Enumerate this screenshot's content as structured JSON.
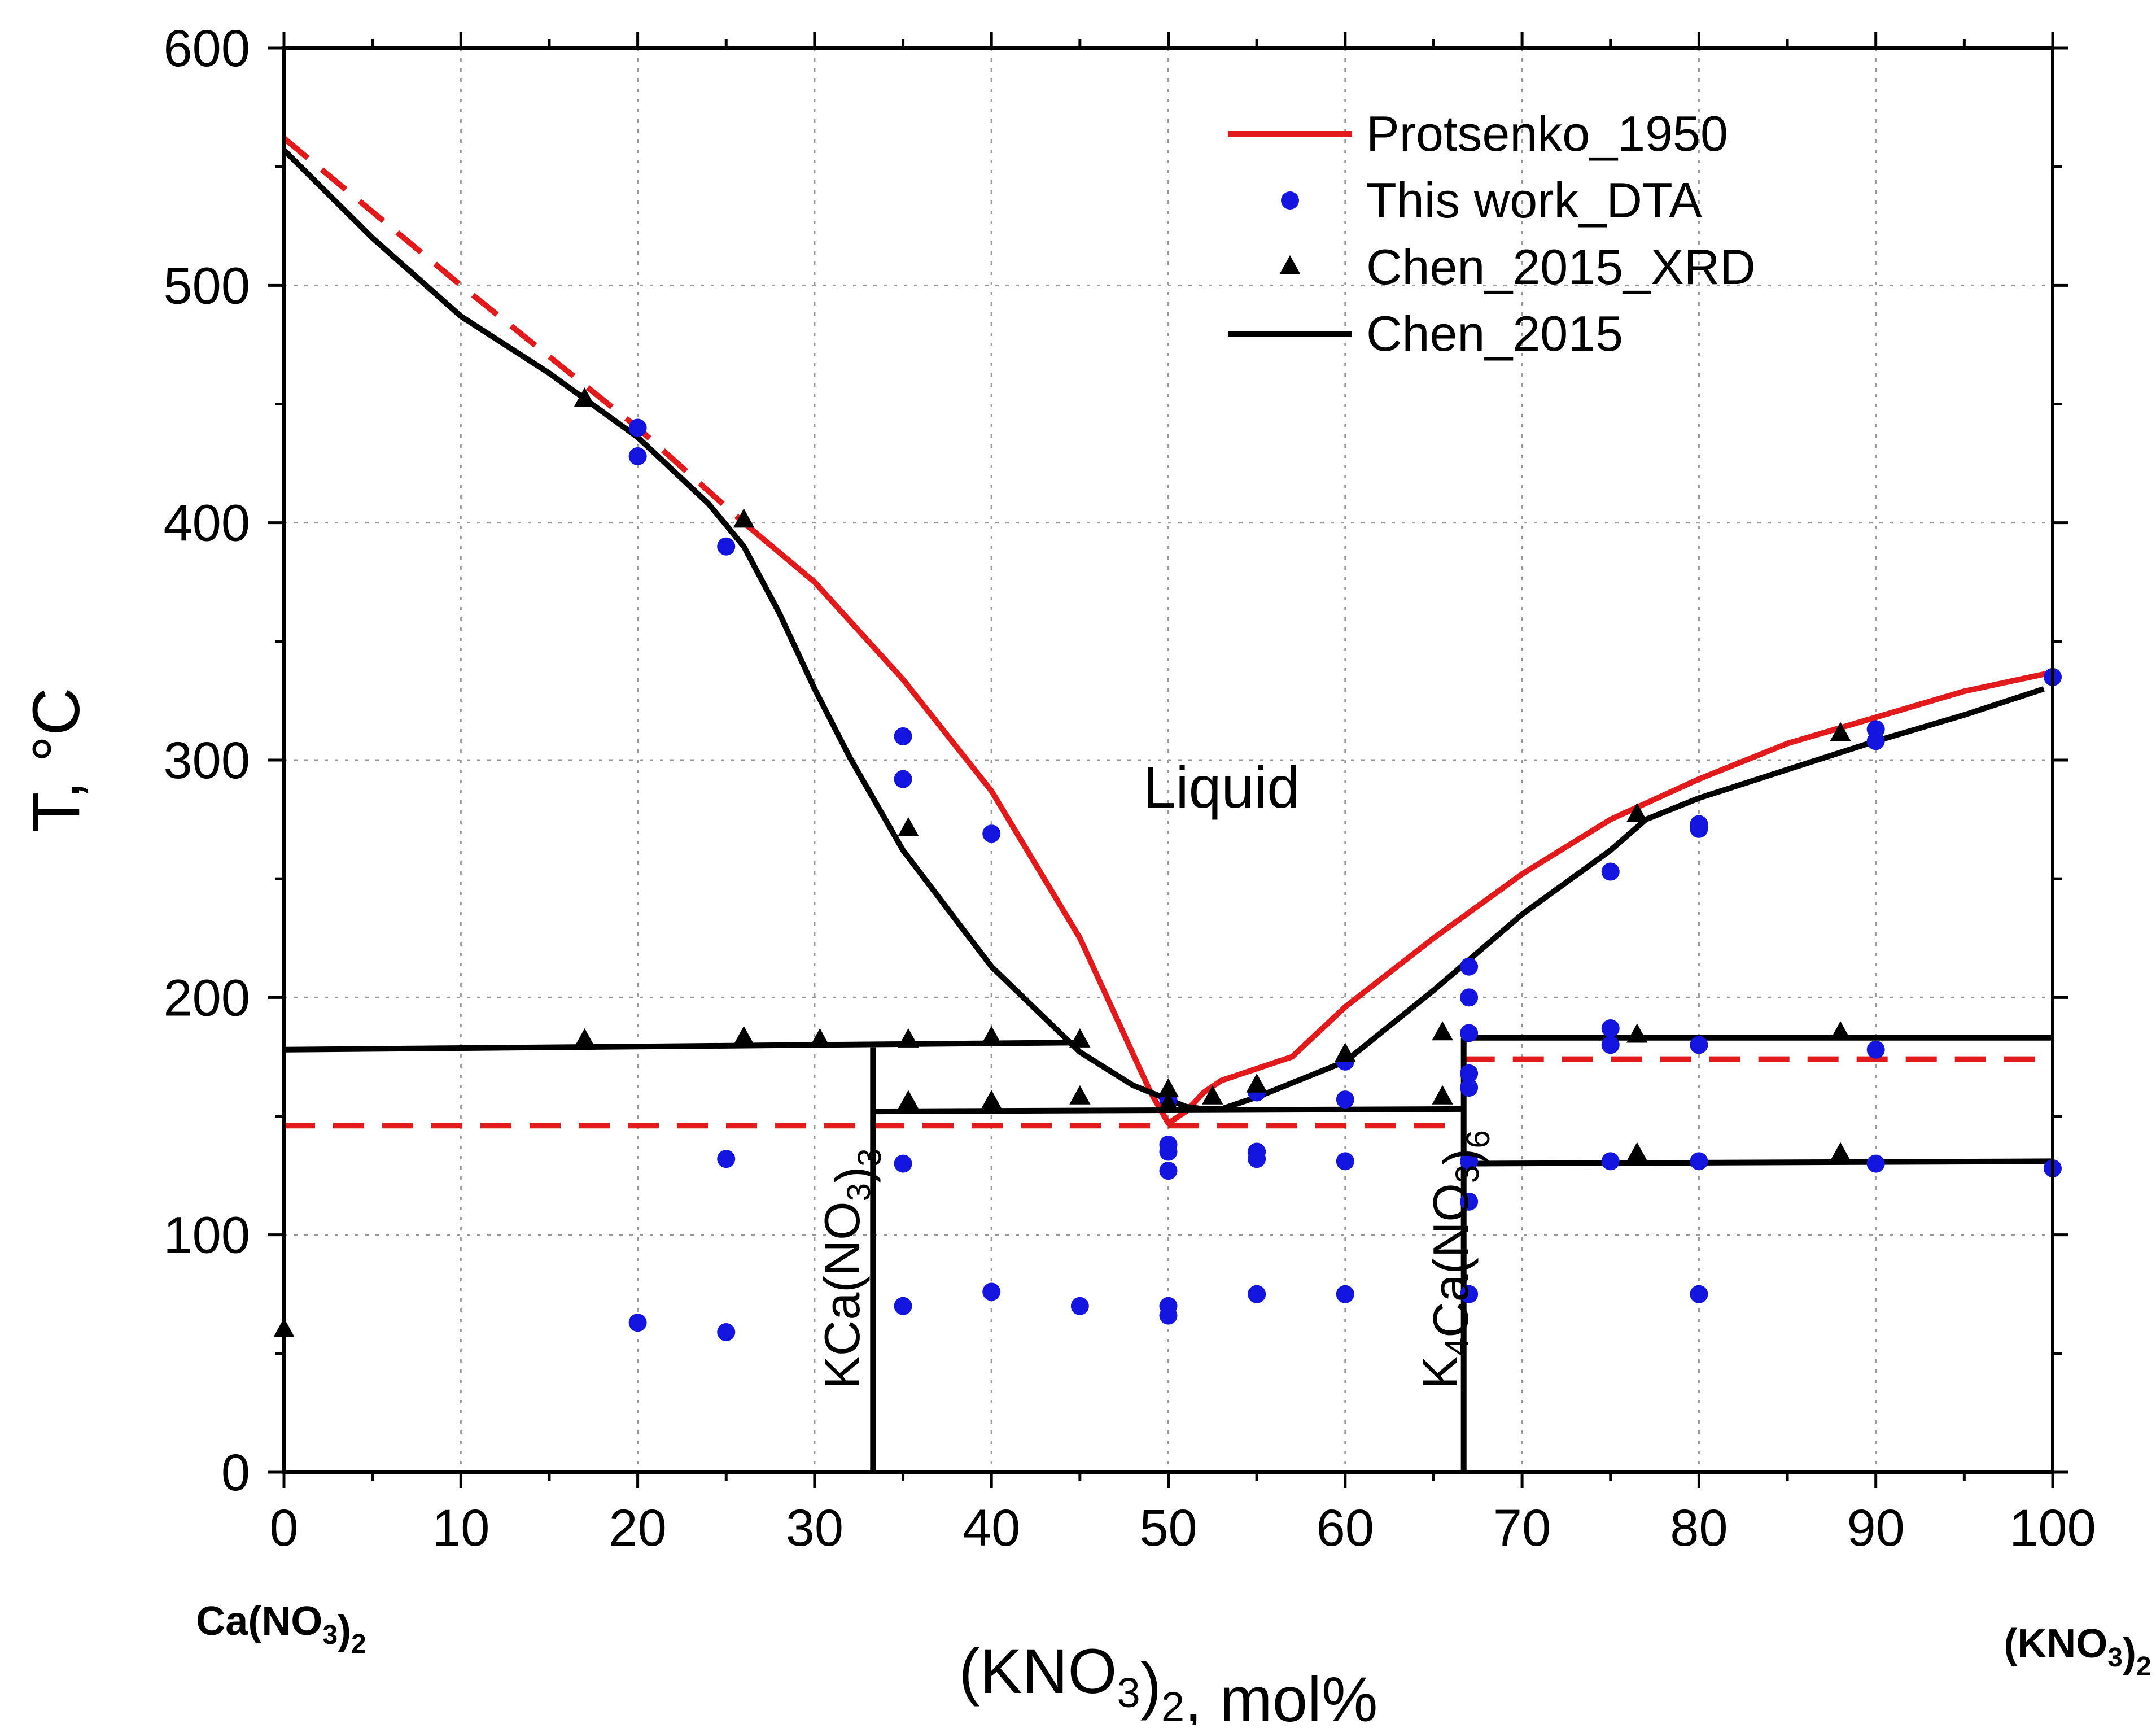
{
  "chart_data": {
    "type": "line",
    "title": "",
    "xlabel": "(KNO3)2, mol%",
    "ylabel": "T, °C",
    "xlim": [
      0,
      100
    ],
    "ylim": [
      0,
      600
    ],
    "xticks": [
      0,
      10,
      20,
      30,
      40,
      50,
      60,
      70,
      80,
      90,
      100
    ],
    "yticks": [
      0,
      100,
      200,
      300,
      400,
      500,
      600
    ],
    "grid": true,
    "legend_position": "top-right",
    "axis_end_labels": {
      "left": "Ca(NO3)2",
      "right": "(KNO3)2"
    },
    "region_labels": [
      {
        "text": "Liquid",
        "x": 53,
        "y": 280
      }
    ],
    "compound_labels": [
      {
        "text": "KCa(NO3)3",
        "x": 31.5,
        "y": 35
      },
      {
        "text": "K4Ca(NO3)6",
        "x": 65.3,
        "y": 35
      }
    ],
    "colors": {
      "protsenko": "#e31a1c",
      "this_work": "#1515e0",
      "chen": "#000000",
      "grid": "#999999"
    },
    "series": [
      {
        "name": "Protsenko_1950",
        "kind": "line",
        "color": "#e31a1c",
        "segments": [
          {
            "dash": true,
            "points": [
              [
                0,
                562
              ],
              [
                10,
                500
              ],
              [
                20,
                440
              ],
              [
                26,
                400
              ]
            ]
          },
          {
            "dash": false,
            "points": [
              [
                26,
                400
              ],
              [
                30,
                375
              ],
              [
                35,
                334
              ],
              [
                40,
                287
              ],
              [
                45,
                225
              ],
              [
                49,
                160
              ],
              [
                50,
                147
              ],
              [
                51,
                152
              ],
              [
                52,
                160
              ],
              [
                53,
                165
              ],
              [
                55,
                170
              ],
              [
                57,
                175
              ],
              [
                60,
                196
              ],
              [
                65,
                225
              ],
              [
                70,
                252
              ],
              [
                75,
                275
              ],
              [
                80,
                292
              ],
              [
                85,
                307
              ],
              [
                90,
                318
              ],
              [
                95,
                329
              ],
              [
                100,
                337
              ]
            ]
          },
          {
            "dash": true,
            "points": [
              [
                0,
                146
              ],
              [
                66.7,
                146
              ]
            ]
          },
          {
            "dash": true,
            "points": [
              [
                66.7,
                174
              ],
              [
                100,
                174
              ]
            ]
          }
        ]
      },
      {
        "name": "This work_DTA",
        "kind": "points",
        "marker": "circle",
        "color": "#1515e0",
        "points": [
          [
            20,
            440
          ],
          [
            20,
            428
          ],
          [
            25,
            390
          ],
          [
            35,
            310
          ],
          [
            35,
            292
          ],
          [
            40,
            269
          ],
          [
            20,
            63
          ],
          [
            25,
            59
          ],
          [
            25,
            132
          ],
          [
            35,
            130
          ],
          [
            35,
            70
          ],
          [
            40,
            76
          ],
          [
            45,
            70
          ],
          [
            50,
            70
          ],
          [
            50,
            66
          ],
          [
            50,
            127
          ],
          [
            50,
            135
          ],
          [
            50,
            138
          ],
          [
            50,
            157
          ],
          [
            55,
            75
          ],
          [
            55,
            132
          ],
          [
            55,
            135
          ],
          [
            55,
            160
          ],
          [
            60,
            75
          ],
          [
            60,
            131
          ],
          [
            60,
            157
          ],
          [
            60,
            173
          ],
          [
            67,
            75
          ],
          [
            67,
            114
          ],
          [
            67,
            131
          ],
          [
            67,
            162
          ],
          [
            67,
            168
          ],
          [
            67,
            185
          ],
          [
            67,
            200
          ],
          [
            67,
            213
          ],
          [
            75,
            131
          ],
          [
            75,
            180
          ],
          [
            75,
            187
          ],
          [
            75,
            253
          ],
          [
            80,
            75
          ],
          [
            80,
            131
          ],
          [
            80,
            180
          ],
          [
            80,
            271
          ],
          [
            80,
            273
          ],
          [
            90,
            130
          ],
          [
            90,
            178
          ],
          [
            90,
            308
          ],
          [
            90,
            313
          ],
          [
            100,
            128
          ],
          [
            100,
            335
          ]
        ]
      },
      {
        "name": "Chen_2015_XRD",
        "kind": "points",
        "marker": "triangle",
        "color": "#000000",
        "points": [
          [
            0,
            60
          ],
          [
            17,
            452
          ],
          [
            26,
            401
          ],
          [
            35.3,
            271
          ],
          [
            17,
            182
          ],
          [
            26,
            183
          ],
          [
            30.3,
            182
          ],
          [
            35.3,
            182
          ],
          [
            40,
            183
          ],
          [
            45,
            182
          ],
          [
            35.3,
            156
          ],
          [
            40,
            156
          ],
          [
            45,
            158
          ],
          [
            50,
            161
          ],
          [
            50,
            155
          ],
          [
            52.5,
            158
          ],
          [
            55,
            163
          ],
          [
            60,
            176
          ],
          [
            65.5,
            185
          ],
          [
            65.5,
            158
          ],
          [
            76.5,
            277
          ],
          [
            76.5,
            184
          ],
          [
            76.5,
            134
          ],
          [
            88,
            311
          ],
          [
            88,
            185
          ],
          [
            88,
            134
          ]
        ]
      },
      {
        "name": "Chen_2015",
        "kind": "line",
        "color": "#000000",
        "segments": [
          {
            "dash": false,
            "points": [
              [
                0,
                557
              ],
              [
                5,
                520
              ],
              [
                10,
                487
              ],
              [
                15,
                463
              ],
              [
                20,
                436
              ],
              [
                24,
                408
              ],
              [
                26,
                390
              ],
              [
                28,
                362
              ],
              [
                30,
                330
              ],
              [
                32,
                301
              ],
              [
                35,
                262
              ],
              [
                40,
                213
              ],
              [
                45,
                177
              ],
              [
                48,
                163
              ],
              [
                50,
                157
              ],
              [
                51,
                154
              ],
              [
                52,
                153
              ],
              [
                53,
                153
              ],
              [
                55,
                158
              ],
              [
                57,
                164
              ],
              [
                60,
                173
              ],
              [
                62,
                185
              ],
              [
                65,
                203
              ],
              [
                70,
                235
              ],
              [
                75,
                262
              ],
              [
                77,
                275
              ],
              [
                80,
                284
              ],
              [
                85,
                296
              ],
              [
                90,
                308
              ],
              [
                95,
                319
              ],
              [
                99.5,
                330
              ]
            ]
          },
          {
            "dash": false,
            "points": [
              [
                0,
                178
              ],
              [
                45,
                181
              ]
            ]
          },
          {
            "dash": false,
            "points": [
              [
                33.3,
                152
              ],
              [
                66.7,
                153
              ]
            ]
          },
          {
            "dash": false,
            "points": [
              [
                66.7,
                183
              ],
              [
                100,
                183
              ]
            ]
          },
          {
            "dash": false,
            "points": [
              [
                66.7,
                130
              ],
              [
                100,
                131
              ]
            ]
          },
          {
            "dash": false,
            "points": [
              [
                33.3,
                0
              ],
              [
                33.3,
                179
              ]
            ]
          },
          {
            "dash": false,
            "points": [
              [
                66.7,
                0
              ],
              [
                66.7,
                183
              ]
            ]
          }
        ]
      }
    ]
  }
}
